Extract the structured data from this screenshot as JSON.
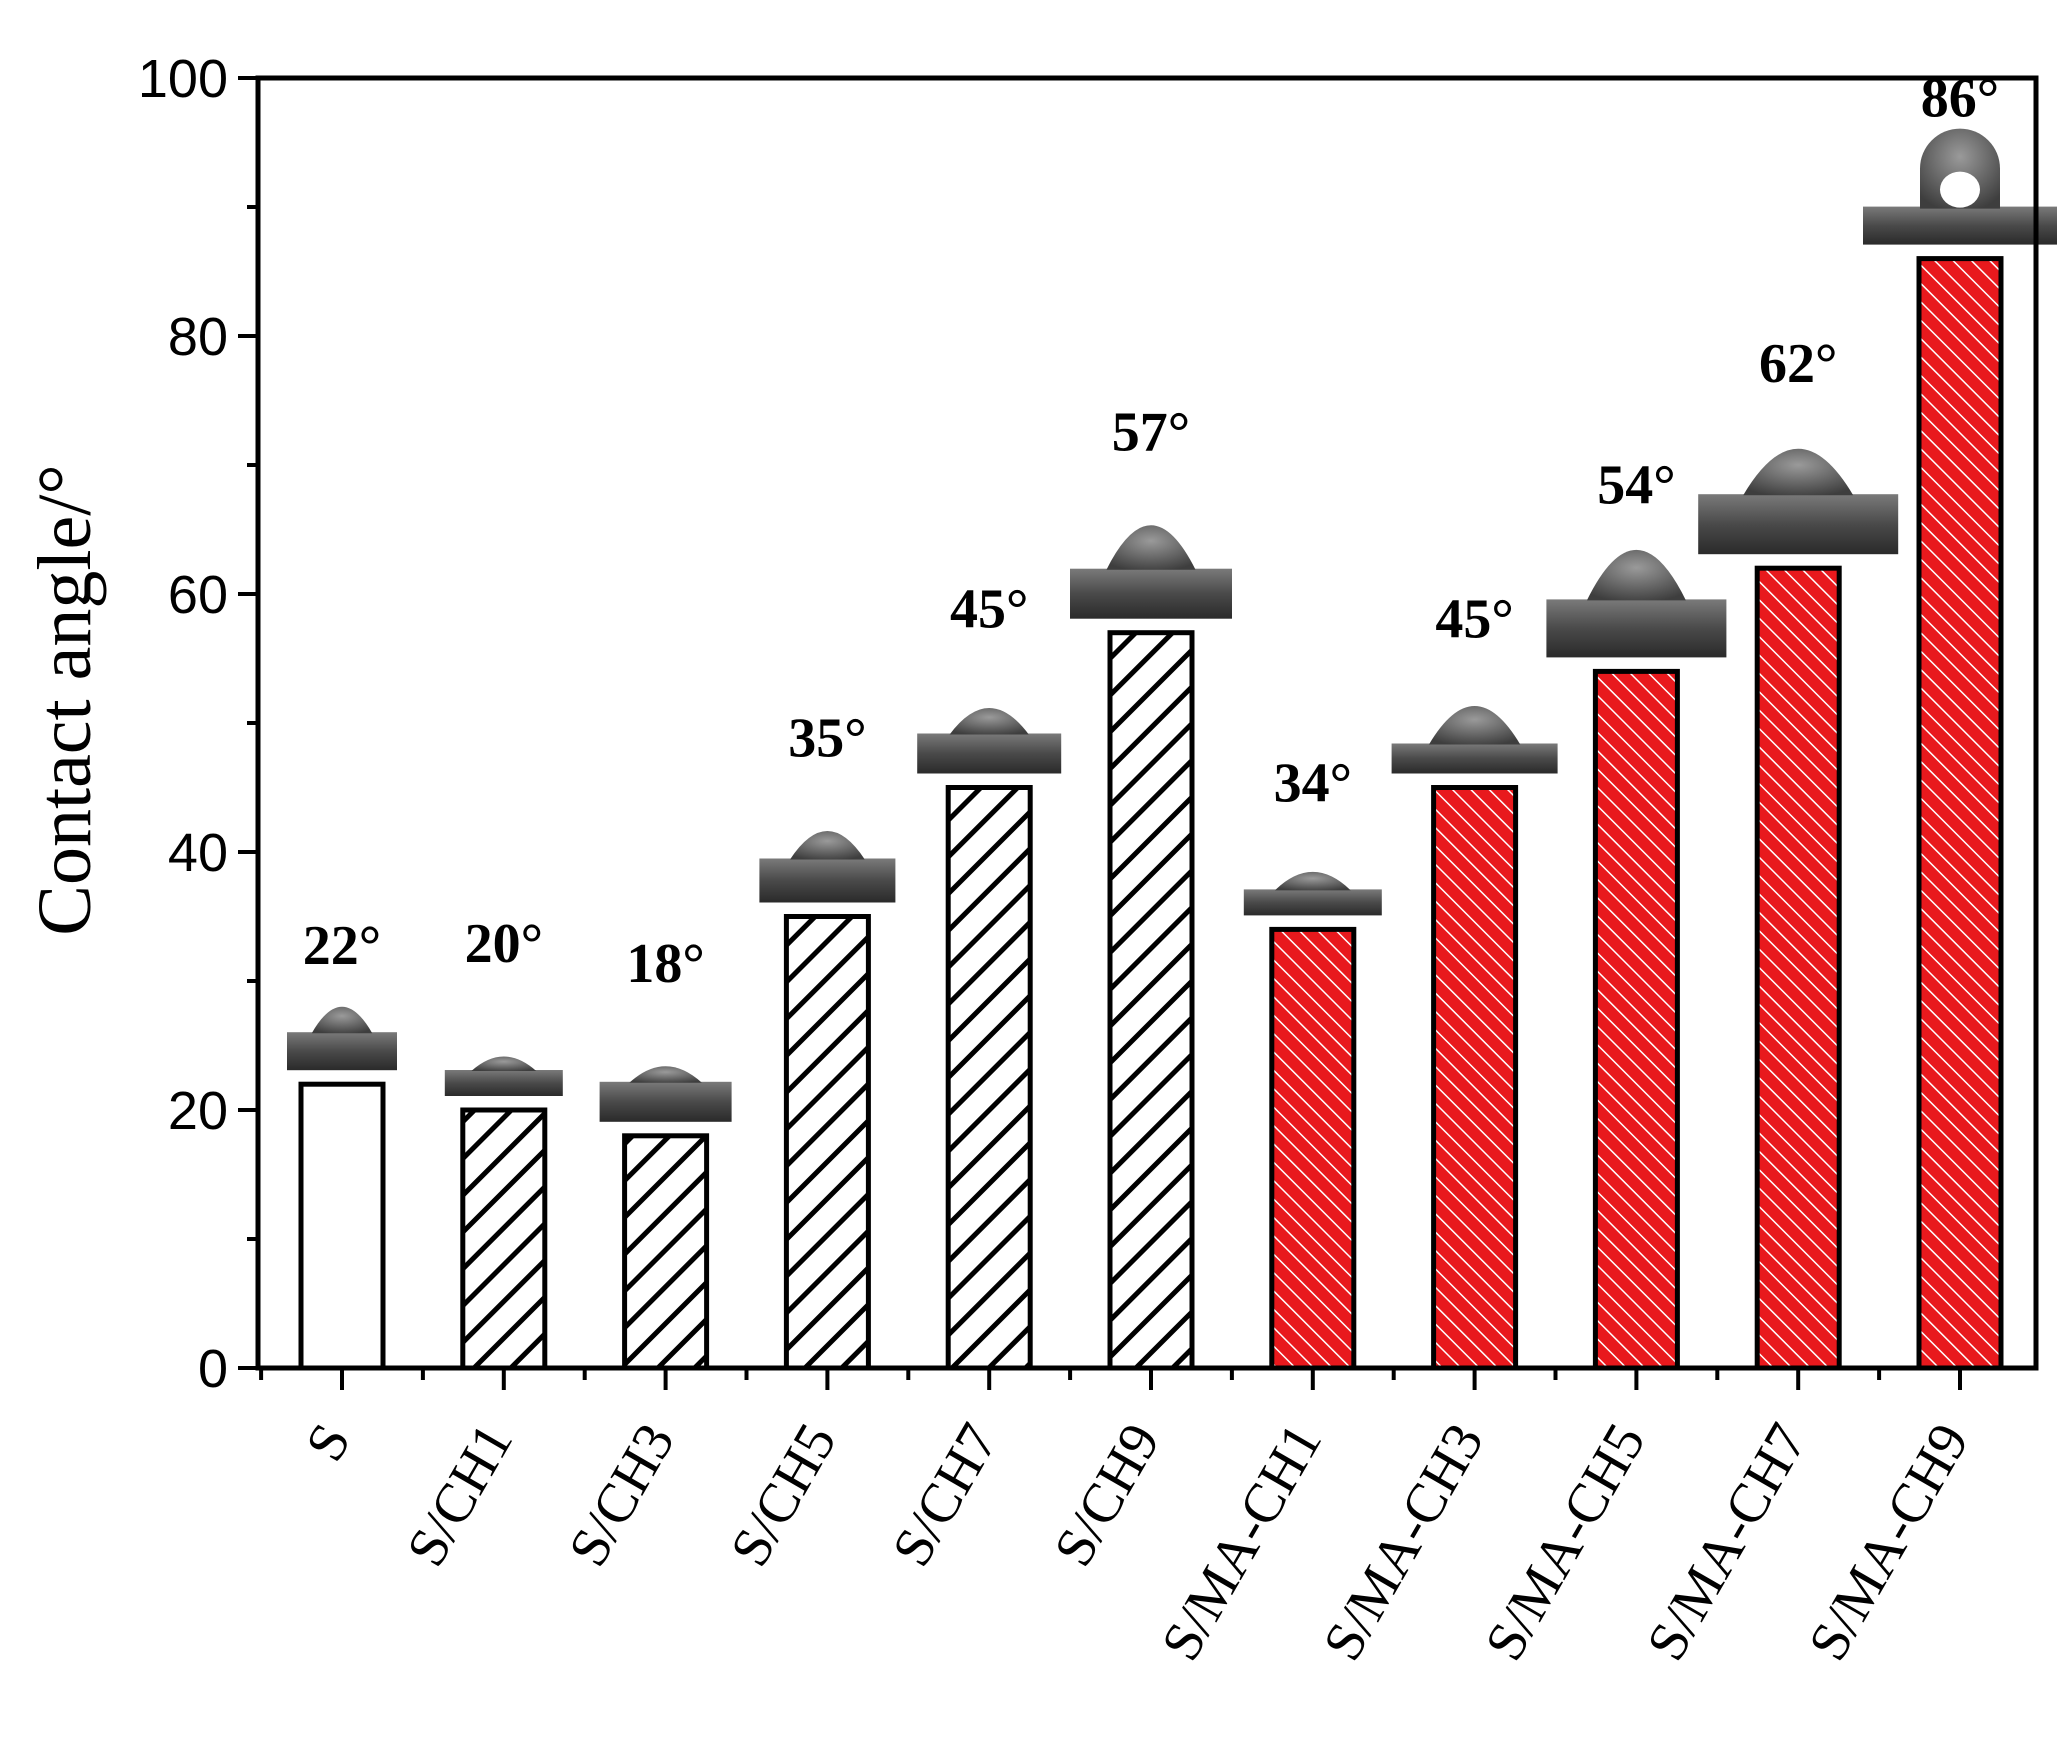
{
  "chart_data": {
    "type": "bar",
    "title": "",
    "xlabel": "",
    "ylabel": "Contact angle/°",
    "ylim": [
      0,
      100
    ],
    "yticks": [
      0,
      20,
      40,
      60,
      80,
      100
    ],
    "grid": false,
    "categories": [
      "S",
      "S/CH1",
      "S/CH3",
      "S/CH5",
      "S/CH7",
      "S/CH9",
      "S/MA-CH1",
      "S/MA-CH3",
      "S/MA-CH5",
      "S/MA-CH7",
      "S/MA-CH9"
    ],
    "values": [
      22,
      20,
      18,
      35,
      45,
      57,
      34,
      45,
      54,
      62,
      86
    ],
    "data_labels": [
      "22°",
      "20°",
      "18°",
      "35°",
      "45°",
      "57°",
      "34°",
      "45°",
      "54°",
      "62°",
      "86°"
    ],
    "fills": [
      "none",
      "black-hatch",
      "black-hatch",
      "black-hatch",
      "black-hatch",
      "black-hatch",
      "red-hatch",
      "red-hatch",
      "red-hatch",
      "red-hatch",
      "red-hatch"
    ],
    "colors": {
      "red_fill": "#e8191d",
      "black": "#000000",
      "droplet": "#5a5a5a"
    }
  }
}
